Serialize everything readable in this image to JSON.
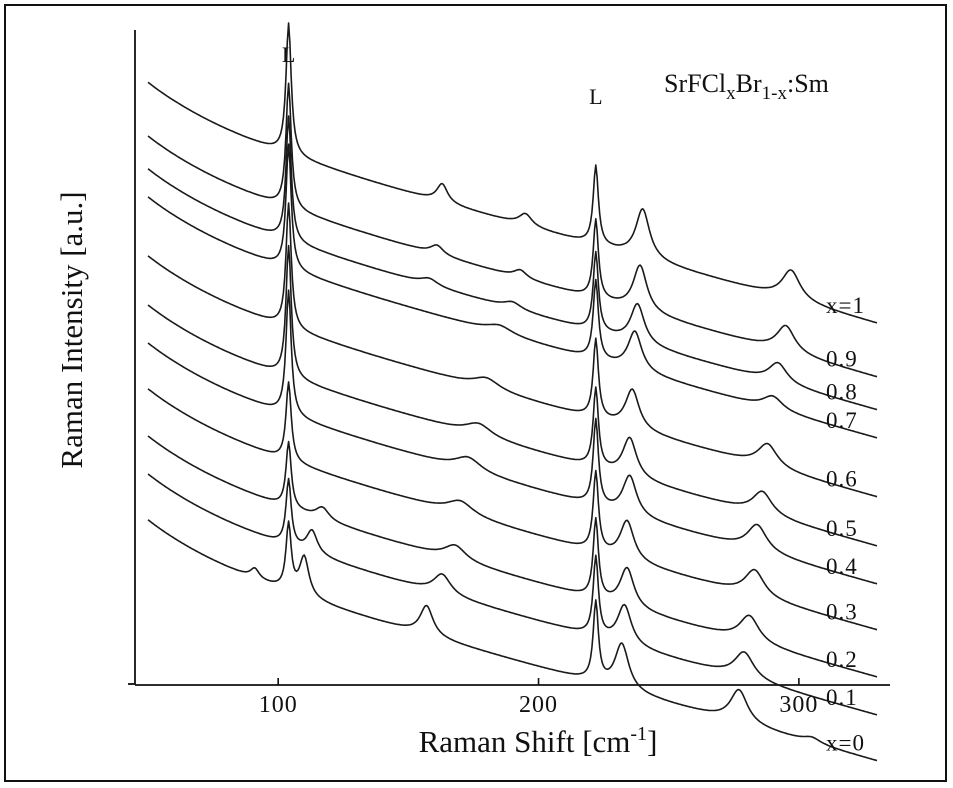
{
  "chart_data": {
    "type": "line",
    "title": "",
    "xlabel": "Raman Shift [cm",
    "xlabel_sup": "-1",
    "xlabel_end": "]",
    "ylabel": "Raman Intensity [a.u.]",
    "xlim": [
      45,
      335
    ],
    "ylim": [
      0,
      1
    ],
    "xticks": [
      100,
      200,
      300
    ],
    "yticks_labeled": false,
    "grid": false,
    "legend": "none",
    "annotations": {
      "compound": {
        "base": "SrFCl",
        "sub1": "x",
        "mid": "Br",
        "sub2": "1-x",
        "end": ":Sm"
      },
      "peak_markers": [
        {
          "text": "L",
          "x": 104
        },
        {
          "text": "L",
          "x": 222
        }
      ]
    },
    "series": [
      {
        "name": "x=1",
        "offset": 0.86,
        "slope": 0.0011,
        "start": 50,
        "end": 330,
        "peaks": [
          [
            104,
            0.2,
            1.2
          ],
          [
            163,
            0.028,
            2.5
          ],
          [
            195,
            0.018,
            3
          ],
          [
            222,
            0.12,
            1.2
          ],
          [
            240,
            0.075,
            3.2
          ],
          [
            297,
            0.045,
            4.2
          ]
        ]
      },
      {
        "name": "0.9",
        "offset": 0.778,
        "slope": 0.0011,
        "start": 50,
        "end": 330,
        "peaks": [
          [
            104,
            0.19,
            1.2
          ],
          [
            161,
            0.014,
            3
          ],
          [
            193,
            0.012,
            3
          ],
          [
            222,
            0.12,
            1.2
          ],
          [
            239,
            0.07,
            3.2
          ],
          [
            295,
            0.04,
            4.2
          ]
        ]
      },
      {
        "name": "0.8",
        "offset": 0.728,
        "slope": 0.0011,
        "start": 50,
        "end": 330,
        "peaks": [
          [
            104,
            0.19,
            1.2
          ],
          [
            158,
            0.01,
            4
          ],
          [
            190,
            0.01,
            4
          ],
          [
            222,
            0.12,
            1.2
          ],
          [
            238,
            0.06,
            3.2
          ],
          [
            292,
            0.03,
            4.2
          ]
        ]
      },
      {
        "name": "0.7",
        "offset": 0.685,
        "slope": 0.0011,
        "start": 50,
        "end": 330,
        "peaks": [
          [
            104,
            0.19,
            1.2
          ],
          [
            185,
            0.012,
            6
          ],
          [
            222,
            0.12,
            1.2
          ],
          [
            237,
            0.06,
            3.2
          ],
          [
            290,
            0.02,
            4.5
          ]
        ]
      },
      {
        "name": "0.6",
        "offset": 0.595,
        "slope": 0.0011,
        "start": 50,
        "end": 330,
        "peaks": [
          [
            104,
            0.19,
            1.2
          ],
          [
            180,
            0.016,
            6
          ],
          [
            222,
            0.12,
            1.2
          ],
          [
            236,
            0.06,
            3.2
          ],
          [
            288,
            0.035,
            4.5
          ]
        ]
      },
      {
        "name": "0.5",
        "offset": 0.52,
        "slope": 0.0011,
        "start": 50,
        "end": 330,
        "peaks": [
          [
            104,
            0.2,
            1.2
          ],
          [
            177,
            0.018,
            6
          ],
          [
            222,
            0.12,
            1.2
          ],
          [
            235,
            0.06,
            3.2
          ],
          [
            286,
            0.035,
            4.5
          ]
        ]
      },
      {
        "name": "0.4",
        "offset": 0.462,
        "slope": 0.0011,
        "start": 50,
        "end": 330,
        "peaks": [
          [
            104,
            0.19,
            1.2
          ],
          [
            173,
            0.02,
            6
          ],
          [
            222,
            0.13,
            1.2
          ],
          [
            235,
            0.06,
            3.2
          ],
          [
            284,
            0.04,
            4.5
          ]
        ]
      },
      {
        "name": "0.3",
        "offset": 0.392,
        "slope": 0.0011,
        "start": 50,
        "end": 330,
        "peaks": [
          [
            104,
            0.12,
            1.2
          ],
          [
            170,
            0.02,
            6
          ],
          [
            222,
            0.12,
            1.2
          ],
          [
            234,
            0.06,
            3.2
          ],
          [
            283,
            0.04,
            4.5
          ]
        ]
      },
      {
        "name": "0.2",
        "offset": 0.32,
        "slope": 0.0011,
        "start": 50,
        "end": 330,
        "peaks": [
          [
            104,
            0.1,
            1.2
          ],
          [
            117,
            0.018,
            3
          ],
          [
            168,
            0.022,
            5
          ],
          [
            222,
            0.12,
            1.2
          ],
          [
            234,
            0.06,
            3.2
          ],
          [
            281,
            0.04,
            4.5
          ]
        ]
      },
      {
        "name": "0.1",
        "offset": 0.262,
        "slope": 0.0011,
        "start": 50,
        "end": 330,
        "peaks": [
          [
            104,
            0.1,
            1.2
          ],
          [
            113,
            0.035,
            2.5
          ],
          [
            163,
            0.03,
            4
          ],
          [
            222,
            0.12,
            1.2
          ],
          [
            233,
            0.06,
            3.2
          ],
          [
            279,
            0.04,
            4.5
          ]
        ]
      },
      {
        "name": "x=0",
        "offset": 0.192,
        "slope": 0.0011,
        "start": 50,
        "end": 330,
        "peaks": [
          [
            91,
            0.015,
            2
          ],
          [
            104,
            0.1,
            1.2
          ],
          [
            110,
            0.06,
            2.2
          ],
          [
            157,
            0.045,
            3
          ],
          [
            222,
            0.12,
            1.2
          ],
          [
            232,
            0.07,
            3.2
          ],
          [
            277,
            0.05,
            4
          ],
          [
            305,
            0.008,
            4
          ]
        ]
      }
    ]
  }
}
